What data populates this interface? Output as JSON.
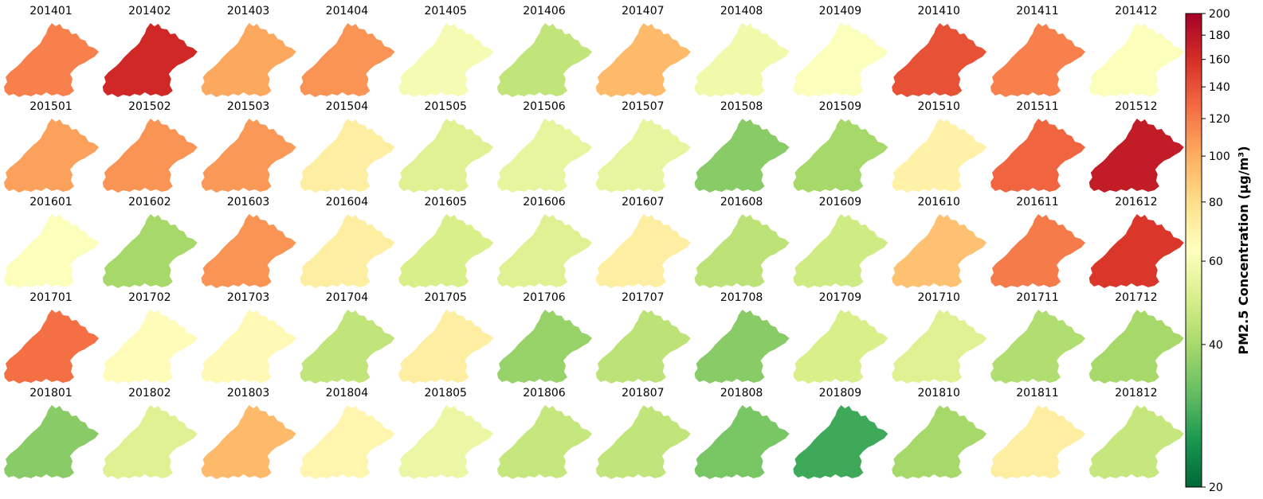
{
  "chart_data": {
    "type": "heatmap",
    "description_unit": "PM2.5 Concentration (μg/m³)",
    "panels": [
      {
        "label": "201401",
        "value": 118
      },
      {
        "label": "201402",
        "value": 165
      },
      {
        "label": "201403",
        "value": 102
      },
      {
        "label": "201404",
        "value": 110
      },
      {
        "label": "201405",
        "value": 60
      },
      {
        "label": "201406",
        "value": 45
      },
      {
        "label": "201407",
        "value": 95
      },
      {
        "label": "201408",
        "value": 58
      },
      {
        "label": "201409",
        "value": 62
      },
      {
        "label": "201410",
        "value": 140
      },
      {
        "label": "201411",
        "value": 118
      },
      {
        "label": "201412",
        "value": 62
      },
      {
        "label": "201501",
        "value": 105
      },
      {
        "label": "201502",
        "value": 110
      },
      {
        "label": "201503",
        "value": 108
      },
      {
        "label": "201504",
        "value": 72
      },
      {
        "label": "201505",
        "value": 52
      },
      {
        "label": "201506",
        "value": 55
      },
      {
        "label": "201507",
        "value": 55
      },
      {
        "label": "201508",
        "value": 36
      },
      {
        "label": "201509",
        "value": 40
      },
      {
        "label": "201510",
        "value": 70
      },
      {
        "label": "201511",
        "value": 130
      },
      {
        "label": "201512",
        "value": 175
      },
      {
        "label": "201601",
        "value": 62
      },
      {
        "label": "201602",
        "value": 40
      },
      {
        "label": "201603",
        "value": 110
      },
      {
        "label": "201604",
        "value": 72
      },
      {
        "label": "201605",
        "value": 50
      },
      {
        "label": "201606",
        "value": 52
      },
      {
        "label": "201607",
        "value": 72
      },
      {
        "label": "201608",
        "value": 44
      },
      {
        "label": "201609",
        "value": 48
      },
      {
        "label": "201610",
        "value": 92
      },
      {
        "label": "201611",
        "value": 120
      },
      {
        "label": "201612",
        "value": 155
      },
      {
        "label": "201701",
        "value": 125
      },
      {
        "label": "201702",
        "value": 65
      },
      {
        "label": "201703",
        "value": 66
      },
      {
        "label": "201704",
        "value": 45
      },
      {
        "label": "201705",
        "value": 72
      },
      {
        "label": "201706",
        "value": 38
      },
      {
        "label": "201707",
        "value": 44
      },
      {
        "label": "201708",
        "value": 36
      },
      {
        "label": "201709",
        "value": 50
      },
      {
        "label": "201710",
        "value": 52
      },
      {
        "label": "201711",
        "value": 42
      },
      {
        "label": "201712",
        "value": 40
      },
      {
        "label": "201801",
        "value": 36
      },
      {
        "label": "201802",
        "value": 52
      },
      {
        "label": "201803",
        "value": 95
      },
      {
        "label": "201804",
        "value": 68
      },
      {
        "label": "201805",
        "value": 56
      },
      {
        "label": "201806",
        "value": 46
      },
      {
        "label": "201807",
        "value": 45
      },
      {
        "label": "201808",
        "value": 34
      },
      {
        "label": "201809",
        "value": 28
      },
      {
        "label": "201810",
        "value": 40
      },
      {
        "label": "201811",
        "value": 72
      },
      {
        "label": "201812",
        "value": 46
      }
    ],
    "colorbar": {
      "label": "PM2.5 Concentration (μg/m³)",
      "min": 20,
      "max": 200,
      "scale": "log",
      "colormap": "RdYlGn_r",
      "ticks": [
        20,
        40,
        60,
        80,
        100,
        120,
        140,
        160,
        180,
        200
      ],
      "tick_labels": [
        "20",
        "40",
        "60",
        "80",
        "100",
        "120",
        "140",
        "160",
        "180",
        "200"
      ]
    },
    "grid": false
  }
}
